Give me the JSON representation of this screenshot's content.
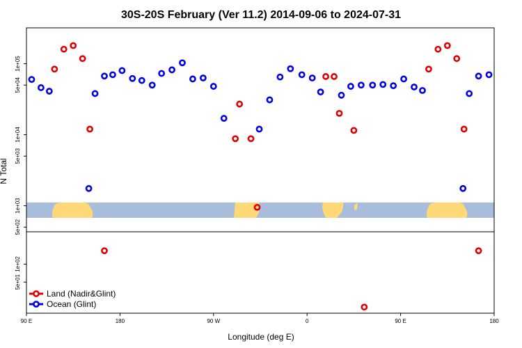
{
  "chart_data": {
    "type": "scatter",
    "title": "30S-20S February (Ver 11.2)   2014-09-06 to 2024-07-31",
    "xlabel": "Longitude (deg E)",
    "ylabel": "N Total",
    "x_tick_labels": [
      "90 E",
      "180",
      "90 W",
      "0",
      "90 E",
      "180"
    ],
    "x_range_deg": [
      90,
      540
    ],
    "y_scale": "log",
    "top_panel": {
      "ylim": [
        430,
        320000
      ],
      "y_tick_labels": [
        "5e+02",
        "1e+03",
        "5e+03",
        "1e+04",
        "5e+04",
        "1e+05"
      ],
      "land_color": "#ffd878",
      "ocean_color": "#a8bcdc"
    },
    "bottom_panel": {
      "ylim": [
        15,
        350
      ],
      "y_tick_labels": [
        "5e+01",
        "1e+02"
      ]
    },
    "legend_placement": "bottom-left",
    "series": [
      {
        "name": "Land (Nadir&Glint)",
        "color": "#e00000",
        "top_points": [
          {
            "x": 117,
            "y": 84000
          },
          {
            "x": 126,
            "y": 160000
          },
          {
            "x": 135,
            "y": 180000
          },
          {
            "x": 144,
            "y": 118000
          },
          {
            "x": 151,
            "y": 12000
          },
          {
            "x": 291,
            "y": 8800
          },
          {
            "x": 295,
            "y": 27000
          },
          {
            "x": 306,
            "y": 8800
          },
          {
            "x": 312,
            "y": 950
          },
          {
            "x": 378,
            "y": 66000
          },
          {
            "x": 386,
            "y": 66000
          },
          {
            "x": 391,
            "y": 20000
          },
          {
            "x": 405,
            "y": 11500
          },
          {
            "x": 477,
            "y": 84000
          },
          {
            "x": 486,
            "y": 160000
          },
          {
            "x": 495,
            "y": 180000
          },
          {
            "x": 504,
            "y": 118000
          },
          {
            "x": 511,
            "y": 12000
          }
        ],
        "bottom_points": [
          {
            "x": 165,
            "y": 168
          },
          {
            "x": 415,
            "y": 19
          },
          {
            "x": 525,
            "y": 168
          }
        ]
      },
      {
        "name": "Ocean (Glint)",
        "color": "#0000e0",
        "top_points": [
          {
            "x": 95,
            "y": 60000
          },
          {
            "x": 104,
            "y": 46000
          },
          {
            "x": 112,
            "y": 41000
          },
          {
            "x": 150,
            "y": 1750
          },
          {
            "x": 156,
            "y": 38000
          },
          {
            "x": 165,
            "y": 67000
          },
          {
            "x": 173,
            "y": 70000
          },
          {
            "x": 182,
            "y": 80000
          },
          {
            "x": 192,
            "y": 62000
          },
          {
            "x": 201,
            "y": 58000
          },
          {
            "x": 211,
            "y": 50000
          },
          {
            "x": 220,
            "y": 73000
          },
          {
            "x": 230,
            "y": 82000
          },
          {
            "x": 240,
            "y": 103000
          },
          {
            "x": 250,
            "y": 61000
          },
          {
            "x": 260,
            "y": 63000
          },
          {
            "x": 270,
            "y": 48000
          },
          {
            "x": 280,
            "y": 17000
          },
          {
            "x": 314,
            "y": 12000
          },
          {
            "x": 324,
            "y": 31000
          },
          {
            "x": 334,
            "y": 65000
          },
          {
            "x": 344,
            "y": 85000
          },
          {
            "x": 355,
            "y": 70000
          },
          {
            "x": 365,
            "y": 63000
          },
          {
            "x": 373,
            "y": 40000
          },
          {
            "x": 393,
            "y": 36000
          },
          {
            "x": 402,
            "y": 48000
          },
          {
            "x": 412,
            "y": 50000
          },
          {
            "x": 423,
            "y": 50000
          },
          {
            "x": 433,
            "y": 51000
          },
          {
            "x": 443,
            "y": 49000
          },
          {
            "x": 453,
            "y": 61000
          },
          {
            "x": 463,
            "y": 47000
          },
          {
            "x": 471,
            "y": 42000
          },
          {
            "x": 510,
            "y": 1750
          },
          {
            "x": 516,
            "y": 38000
          },
          {
            "x": 525,
            "y": 67000
          },
          {
            "x": 535,
            "y": 70000
          }
        ]
      }
    ]
  }
}
